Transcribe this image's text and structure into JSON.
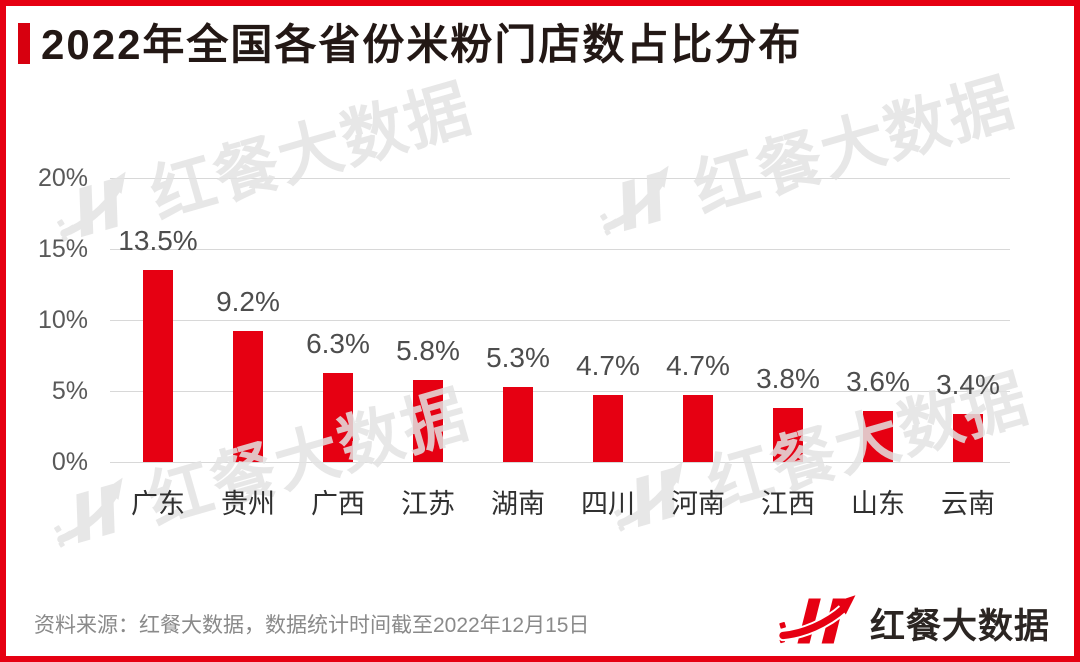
{
  "header": {
    "title": "2022年全国各省份米粉门店数占比分布"
  },
  "chart_data": {
    "type": "bar",
    "title": "2022年全国各省份米粉门店数占比分布",
    "categories": [
      "广东",
      "贵州",
      "广西",
      "江苏",
      "湖南",
      "四川",
      "河南",
      "江西",
      "山东",
      "云南"
    ],
    "values": [
      13.5,
      9.2,
      6.3,
      5.8,
      5.3,
      4.7,
      4.7,
      3.8,
      3.6,
      3.4
    ],
    "value_labels": [
      "13.5%",
      "9.2%",
      "6.3%",
      "5.8%",
      "5.3%",
      "4.7%",
      "4.7%",
      "3.8%",
      "3.6%",
      "3.4%"
    ],
    "xlabel": "",
    "ylabel": "",
    "y_axis": {
      "ticks": [
        0,
        5,
        10,
        15,
        20
      ],
      "tick_labels": [
        "0%",
        "5%",
        "10%",
        "15%",
        "20%"
      ],
      "range": [
        0,
        20
      ]
    },
    "grid": true,
    "legend_position": "none",
    "bar_color": "#e60012"
  },
  "watermark": {
    "text": "红餐大数据"
  },
  "footer": {
    "source_text": "资料来源：红餐大数据，数据统计时间截至2022年12月15日",
    "brand_name": "红餐大数据"
  },
  "colors": {
    "frame_red": "#e60012",
    "accent_red": "#d7000f",
    "bar_red": "#e60012",
    "grid_gray": "#d8d8d8",
    "tick_gray": "#595959",
    "value_gray": "#4d4d4d",
    "category_dark": "#303030",
    "source_gray": "#8a8a8a",
    "watermark_gray": "#e3e3e3"
  }
}
